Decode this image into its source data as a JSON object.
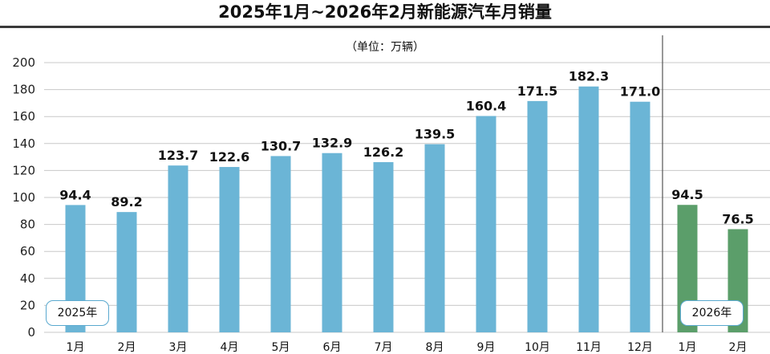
{
  "chart_data": {
    "type": "bar",
    "title": "2025年1月~2026年2月新能源汽车月销量",
    "unit_label": "（单位：万辆）",
    "ylim": [
      0,
      200
    ],
    "yticks": [
      0,
      20,
      40,
      60,
      80,
      100,
      120,
      140,
      160,
      180,
      200
    ],
    "grid": true,
    "groups": [
      {
        "label": "2025年",
        "color": "#6bb5d6",
        "categories": [
          "1月",
          "2月",
          "3月",
          "4月",
          "5月",
          "6月",
          "7月",
          "8月",
          "9月",
          "10月",
          "11月",
          "12月"
        ],
        "values": [
          94.4,
          89.2,
          123.7,
          122.6,
          130.7,
          132.9,
          126.2,
          139.5,
          160.4,
          171.5,
          182.3,
          171.0
        ],
        "value_labels": [
          "94.4",
          "89.2",
          "123.7",
          "122.6",
          "130.7",
          "132.9",
          "126.2",
          "139.5",
          "160.4",
          "171.5",
          "182.3",
          "171.0"
        ]
      },
      {
        "label": "2026年",
        "color": "#5b9e6a",
        "categories": [
          "1月",
          "2月"
        ],
        "values": [
          94.5,
          76.5
        ],
        "value_labels": [
          "94.5",
          "76.5"
        ]
      }
    ]
  }
}
